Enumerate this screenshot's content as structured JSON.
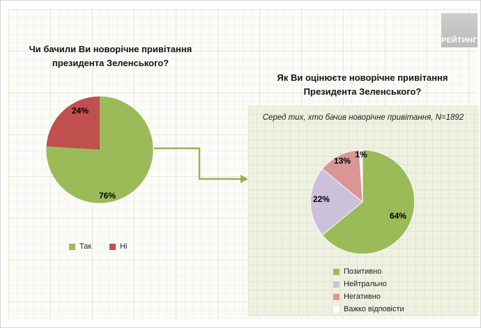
{
  "logo": {
    "text": "РЕЙТИНГ"
  },
  "theme": {
    "background": "#fbfbf8",
    "panel_background": "#eef1e2",
    "arrow_green": "#93b455",
    "positive_green": "#9bbb59",
    "negative_red": "#c0504d",
    "neutral_lavender": "#ccc1da",
    "negative_pink": "#d99694",
    "logo_gray": "#c6c6c6"
  },
  "chart_data": [
    {
      "type": "pie",
      "title": "Чи бачили Ви новорічне привітання президента Зеленського?",
      "title_lines": [
        "Чи бачили Ви новорічне привітання",
        "президента Зеленського?"
      ],
      "categories": [
        "Так",
        "Ні"
      ],
      "values": [
        76,
        24
      ],
      "slice_labels": [
        "76%",
        "24%"
      ],
      "colors": [
        "#9bbb59",
        "#c0504d"
      ],
      "legend_position": "bottom",
      "start_angle_deg": 0,
      "direction": "clockwise"
    },
    {
      "type": "pie",
      "title": "Як Ви оцінюєте новорічне привітання Президента Зеленського?",
      "title_lines": [
        "Як Ви оцінюєте новорічне привітання",
        "Президента Зеленського?"
      ],
      "subtitle": "Серед тих, хто бачив новорічне привітання, N=1892",
      "categories": [
        "Позитивно",
        "Нейтрально",
        "Негативно",
        "Важко відповісти"
      ],
      "values": [
        64,
        22,
        13,
        1
      ],
      "slice_labels": [
        "64%",
        "22%",
        "13%",
        "1%"
      ],
      "colors": [
        "#9bbb59",
        "#ccc1da",
        "#d99694",
        "#ffffff"
      ],
      "legend_position": "bottom-right",
      "start_angle_deg": 0,
      "direction": "clockwise"
    }
  ]
}
